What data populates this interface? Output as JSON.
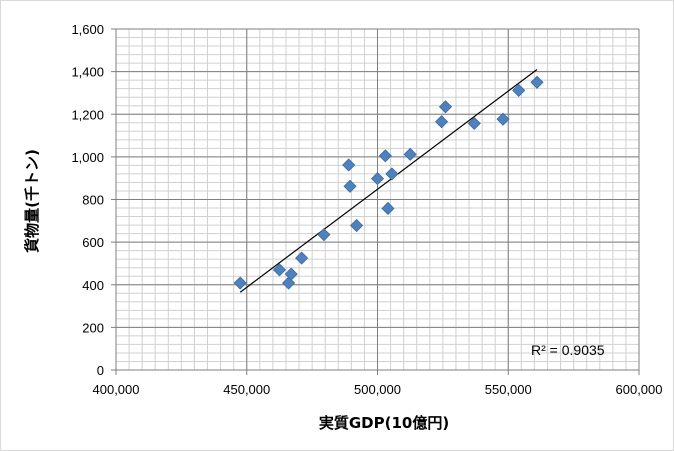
{
  "chart_data": {
    "type": "scatter",
    "xlabel": "実質GDP(10億円)",
    "ylabel": "貨物量(千トン)",
    "xlim": [
      400000,
      600000
    ],
    "ylim": [
      0,
      1600
    ],
    "x_ticks": [
      "400,000",
      "450,000",
      "500,000",
      "550,000",
      "600,000"
    ],
    "y_ticks": [
      "0",
      "200",
      "400",
      "600",
      "800",
      "1,000",
      "1,200",
      "1,400",
      "1,600"
    ],
    "x_tick_values": [
      400000,
      450000,
      500000,
      550000,
      600000
    ],
    "y_tick_values": [
      0,
      200,
      400,
      600,
      800,
      1000,
      1200,
      1400,
      1600
    ],
    "grid": true,
    "marker_color": "#4f81bd",
    "points": [
      {
        "x": 447500,
        "y": 408
      },
      {
        "x": 462500,
        "y": 470
      },
      {
        "x": 466000,
        "y": 408
      },
      {
        "x": 467000,
        "y": 450
      },
      {
        "x": 471000,
        "y": 525
      },
      {
        "x": 479500,
        "y": 635
      },
      {
        "x": 489000,
        "y": 962
      },
      {
        "x": 489500,
        "y": 862
      },
      {
        "x": 492000,
        "y": 678
      },
      {
        "x": 500000,
        "y": 898
      },
      {
        "x": 503000,
        "y": 1005
      },
      {
        "x": 504000,
        "y": 758
      },
      {
        "x": 505500,
        "y": 920
      },
      {
        "x": 512500,
        "y": 1012
      },
      {
        "x": 524500,
        "y": 1165
      },
      {
        "x": 526000,
        "y": 1235
      },
      {
        "x": 537000,
        "y": 1157
      },
      {
        "x": 548000,
        "y": 1177
      },
      {
        "x": 554000,
        "y": 1312
      },
      {
        "x": 561000,
        "y": 1350
      }
    ],
    "trendline": {
      "x": [
        447500,
        561000
      ],
      "y": [
        365,
        1410
      ]
    },
    "annotation": "R² = 0.9035"
  }
}
